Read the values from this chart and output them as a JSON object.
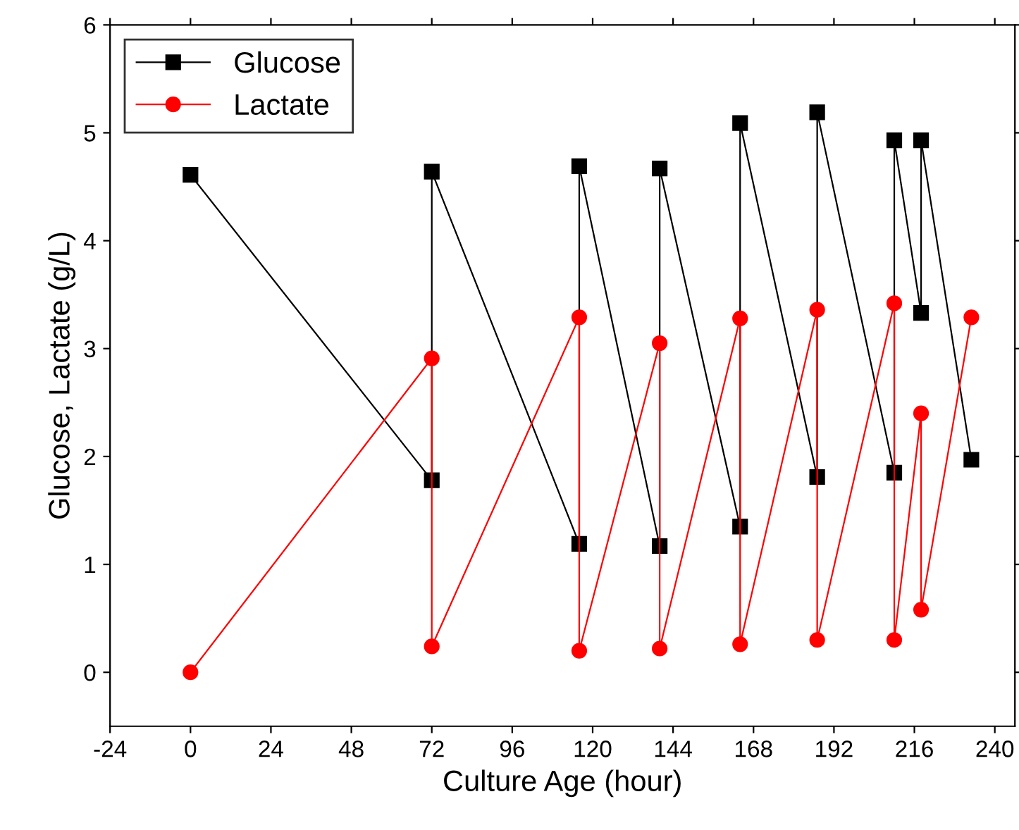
{
  "chart_data": {
    "type": "line",
    "xlabel": "Culture Age (hour)",
    "ylabel": "Glucose, Lactate (g/L)",
    "xlim": [
      -24,
      246
    ],
    "xticks": [
      -24,
      0,
      24,
      48,
      72,
      96,
      120,
      144,
      168,
      192,
      216,
      240
    ],
    "ylim": [
      -0.5,
      6
    ],
    "yticks": [
      0,
      1,
      2,
      3,
      4,
      5,
      6
    ],
    "legend": "top left",
    "grid": false,
    "series": [
      {
        "name": "Glucose",
        "color": "#000000",
        "marker": "square",
        "x": [
          0,
          72,
          72,
          116,
          116,
          140,
          140,
          164,
          164,
          187,
          187,
          210,
          210,
          218,
          218,
          233
        ],
        "values": [
          4.61,
          1.78,
          4.64,
          1.19,
          4.69,
          1.17,
          4.67,
          1.35,
          5.09,
          1.81,
          5.19,
          1.85,
          4.93,
          3.33,
          4.93,
          1.97
        ]
      },
      {
        "name": "Lactate",
        "color": "#ff0000",
        "marker": "circle",
        "x": [
          0,
          72,
          72,
          116,
          116,
          140,
          140,
          164,
          164,
          187,
          187,
          210,
          210,
          218,
          218,
          233
        ],
        "values": [
          0,
          2.91,
          0.24,
          3.29,
          0.2,
          3.05,
          0.22,
          3.28,
          0.26,
          3.36,
          0.3,
          3.42,
          0.3,
          2.4,
          0.58,
          3.29
        ]
      }
    ]
  }
}
